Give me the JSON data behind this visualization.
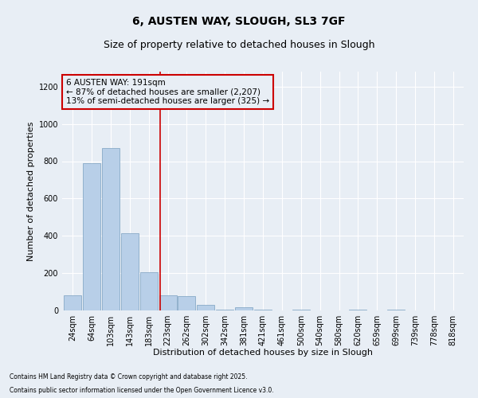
{
  "title1": "6, AUSTEN WAY, SLOUGH, SL3 7GF",
  "title2": "Size of property relative to detached houses in Slough",
  "xlabel": "Distribution of detached houses by size in Slough",
  "ylabel": "Number of detached properties",
  "bar_labels": [
    "24sqm",
    "64sqm",
    "103sqm",
    "143sqm",
    "183sqm",
    "223sqm",
    "262sqm",
    "302sqm",
    "342sqm",
    "381sqm",
    "421sqm",
    "461sqm",
    "500sqm",
    "540sqm",
    "580sqm",
    "620sqm",
    "659sqm",
    "699sqm",
    "739sqm",
    "778sqm",
    "818sqm"
  ],
  "bar_values": [
    80,
    790,
    870,
    415,
    205,
    80,
    75,
    30,
    5,
    15,
    5,
    0,
    5,
    0,
    0,
    5,
    0,
    5,
    0,
    0,
    0
  ],
  "bar_color": "#b8cfe8",
  "bar_edge_color": "#7aa0c0",
  "bg_color": "#e8eef5",
  "grid_color": "#ffffff",
  "vline_x": 4.62,
  "vline_color": "#cc0000",
  "annotation_line1": "6 AUSTEN WAY: 191sqm",
  "annotation_line2": "← 87% of detached houses are smaller (2,207)",
  "annotation_line3": "13% of semi-detached houses are larger (325) →",
  "annotation_box_color": "#cc0000",
  "ylim": [
    0,
    1280
  ],
  "yticks": [
    0,
    200,
    400,
    600,
    800,
    1000,
    1200
  ],
  "footnote1": "Contains HM Land Registry data © Crown copyright and database right 2025.",
  "footnote2": "Contains public sector information licensed under the Open Government Licence v3.0.",
  "title1_fontsize": 10,
  "title2_fontsize": 9,
  "tick_fontsize": 7,
  "label_fontsize": 8,
  "annot_fontsize": 7.5
}
